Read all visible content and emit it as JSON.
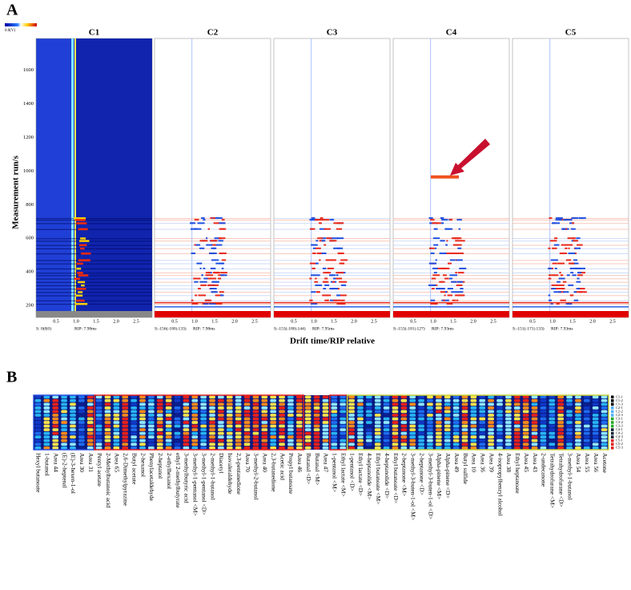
{
  "panel_a": {
    "label": "A",
    "scale_label": "0.0(V)",
    "y_axis_label": "Measurement run/s",
    "x_axis_label": "Drift time/RIP relative",
    "y_ticks": [
      "200",
      "400",
      "600",
      "800",
      "1000",
      "1200",
      "1400",
      "1600"
    ],
    "x_ticks": [
      "0.5",
      "1.0",
      "1.5",
      "2.0",
      "2.5"
    ],
    "panels": [
      {
        "title": "C1",
        "footer": "S: 0(0|0)",
        "rip": "RIP: 7.98ms"
      },
      {
        "title": "C2",
        "footer": "S:-156(-180|-133)",
        "rip": "RIP: 7.98ms"
      },
      {
        "title": "C3",
        "footer": "S:-153(-180|-144)",
        "rip": "RIP: 7.95ms"
      },
      {
        "title": "C4",
        "footer": "S:-153(-181|-127)",
        "rip": "RIP: 7.93ms"
      },
      {
        "title": "C5",
        "footer": "S:-151(-171|-133)",
        "rip": "RIP: 7.93ms"
      }
    ]
  },
  "panel_b": {
    "label": "B",
    "rows": [
      "C1-1",
      "C1-2",
      "C1-3",
      "C2-1",
      "C2-2",
      "C2-3",
      "C3-1",
      "C3-2",
      "C3-3",
      "C4-1",
      "C4-2",
      "C4-3",
      "C5-1",
      "C5-2",
      "C5-3"
    ],
    "compounds": [
      "Hexyl butanoate",
      "1-butanol",
      "Area 44",
      "(E)-2-heptenal",
      "(E)-3-hexen-1-ol",
      "Area 30",
      "Area 31",
      "Pentyl acetate",
      "2-Methylbutanoic acid",
      "Area 65",
      "2,6-Dimethylpyrazine",
      "Butyl acetate",
      "2-hexanol",
      "Phenylacetaldehyde",
      "2-heptanol",
      "2-ethylhexanol",
      "ethyl 2-methylbutyrate",
      "3-methylbutyric acid",
      "3-methyl-1-pentanol <M>",
      "3-methyl-1-pentanol <D>",
      "2-methyl-1-butanol",
      "Diacetyl",
      "Isovaleraldehyde",
      "2,3-pentanedione",
      "Area 70",
      "3-methyl-2-butanol",
      "Area 40",
      "2,3-butanedione",
      "Acetic acid",
      "Propyl butanoate",
      "Area 46",
      "Butanal <D>",
      "Butanal <M>",
      "Area 47",
      "1-pentanol <M>",
      "Ethyl lactate <M>",
      "1-pentanol <D>",
      "Ethyl lactate <D>",
      "4-heptanolide <M>",
      "Ethyl butanoate <M>",
      "4-heptanolide <D>",
      "Ethyl butanoate <D>",
      "2-heptanone <M>",
      "3-methyl-3-buten-1-ol <M>",
      "2-heptanone <D>",
      "3-methyl-3-buten-1-ol <D>",
      "Alpha-pinene <M>",
      "Alpha-pinene <D>",
      "Area 49",
      "Butyl sulfide",
      "Area 10",
      "Area 36",
      "Area 39",
      "4-isopropylbenzyl alcohol",
      "Area 38",
      "Ethyl heptanoate",
      "Area 45",
      "Area 43",
      "2-undecanone",
      "Tetrahydrofurane <M>",
      "Tetrahydrofurane <D>",
      "3-methyl-1-butanol",
      "Area 54",
      "Area 55",
      "Area 56",
      "Acetone"
    ]
  }
}
